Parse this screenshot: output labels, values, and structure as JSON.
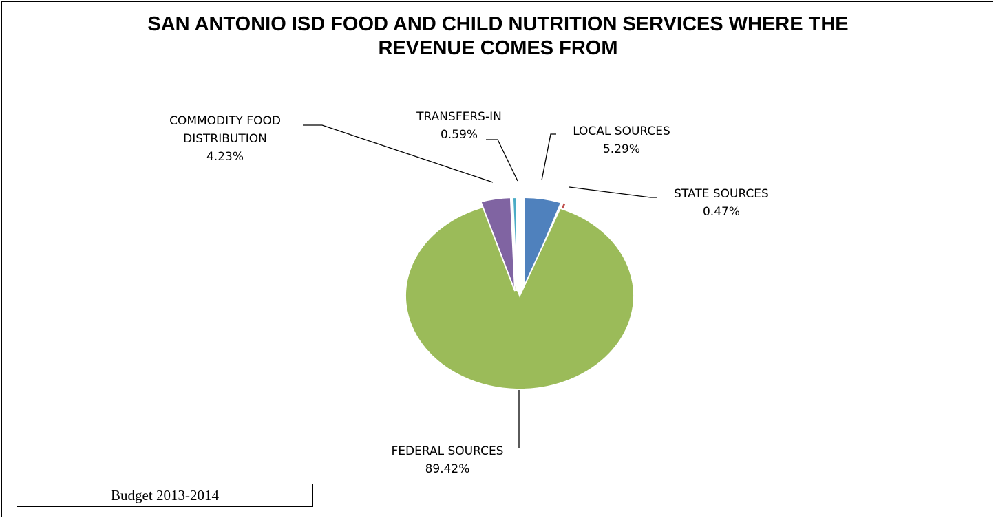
{
  "chart_data": {
    "type": "pie",
    "title": "SAN ANTONIO ISD FOOD AND CHILD NUTRITION SERVICES WHERE THE REVENUE COMES FROM",
    "title_lines": [
      "SAN ANTONIO ISD FOOD AND CHILD NUTRITION SERVICES WHERE THE",
      "REVENUE COMES FROM"
    ],
    "slices": [
      {
        "label": "LOCAL SOURCES",
        "label_lines": [
          "LOCAL SOURCES"
        ],
        "percent_label": "5.29%",
        "value": 5.29,
        "color": "#4F81BD"
      },
      {
        "label": "STATE SOURCES",
        "label_lines": [
          "STATE SOURCES"
        ],
        "percent_label": "0.47%",
        "value": 0.47,
        "color": "#C0504D"
      },
      {
        "label": "FEDERAL SOURCES",
        "label_lines": [
          "FEDERAL SOURCES"
        ],
        "percent_label": "89.42%",
        "value": 89.42,
        "color": "#9BBB59"
      },
      {
        "label": "COMMODITY FOOD DISTRIBUTION",
        "label_lines": [
          "COMMODITY FOOD",
          "DISTRIBUTION"
        ],
        "percent_label": "4.23%",
        "value": 4.23,
        "color": "#8064A2"
      },
      {
        "label": "TRANSFERS-IN",
        "label_lines": [
          "TRANSFERS-IN"
        ],
        "percent_label": "0.59%",
        "value": 0.59,
        "color": "#4BACC6"
      }
    ],
    "legend": "none",
    "exploded": true
  },
  "footnote": "Budget 2013-2014"
}
